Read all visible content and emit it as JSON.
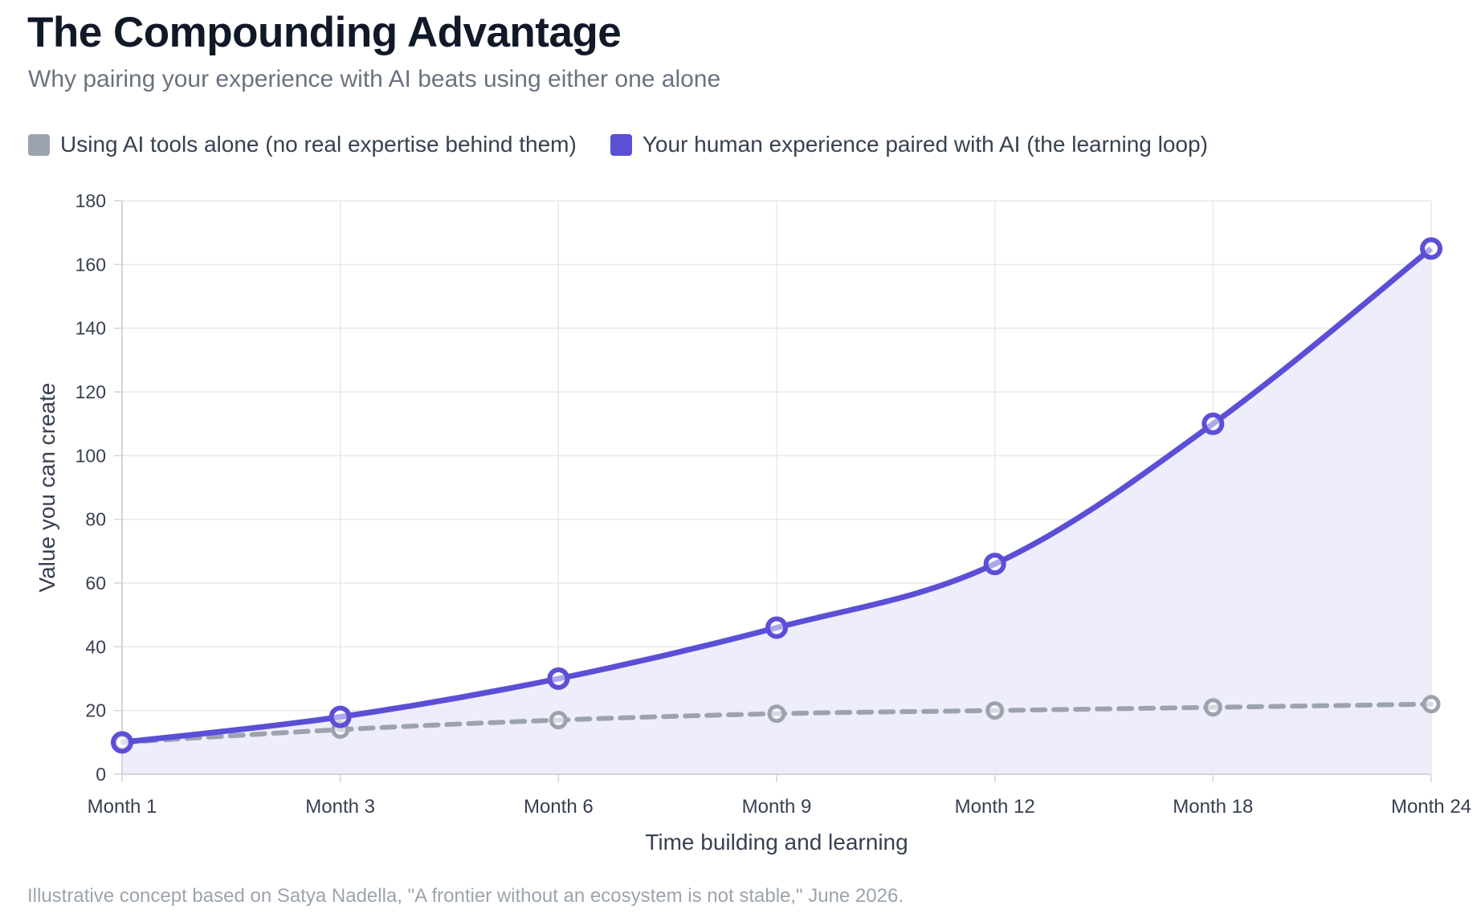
{
  "header": {
    "title": "The Compounding Advantage",
    "subtitle": "Why pairing your experience with AI beats using either one alone"
  },
  "footer": {
    "note": "Illustrative concept based on Satya Nadella, \"A frontier without an ecosystem is not stable,\" June 2026."
  },
  "colors": {
    "series_alone": "#9ca3af",
    "series_paired": "#5b4fd6",
    "area_fill": "#ecebfa",
    "grid": "#e8e8ec",
    "axis": "#d1d5db",
    "tick_text": "#374151"
  },
  "chart_data": {
    "type": "line",
    "categories": [
      "Month 1",
      "Month 3",
      "Month 6",
      "Month 9",
      "Month 12",
      "Month 18",
      "Month 24"
    ],
    "series": [
      {
        "name": "Using AI tools alone (no real expertise behind them)",
        "values": [
          10,
          14,
          17,
          19,
          20,
          21,
          22
        ],
        "style": "dashed",
        "fill": false
      },
      {
        "name": "Your human experience paired with AI (the learning loop)",
        "values": [
          10,
          18,
          30,
          46,
          66,
          110,
          165
        ],
        "style": "solid",
        "fill": true
      }
    ],
    "xlabel": "Time building and learning",
    "ylabel": "Value you can create",
    "ylim": [
      0,
      180
    ],
    "yticks": [
      0,
      20,
      40,
      60,
      80,
      100,
      120,
      140,
      160,
      180
    ],
    "grid": true,
    "legend": "top-left"
  }
}
